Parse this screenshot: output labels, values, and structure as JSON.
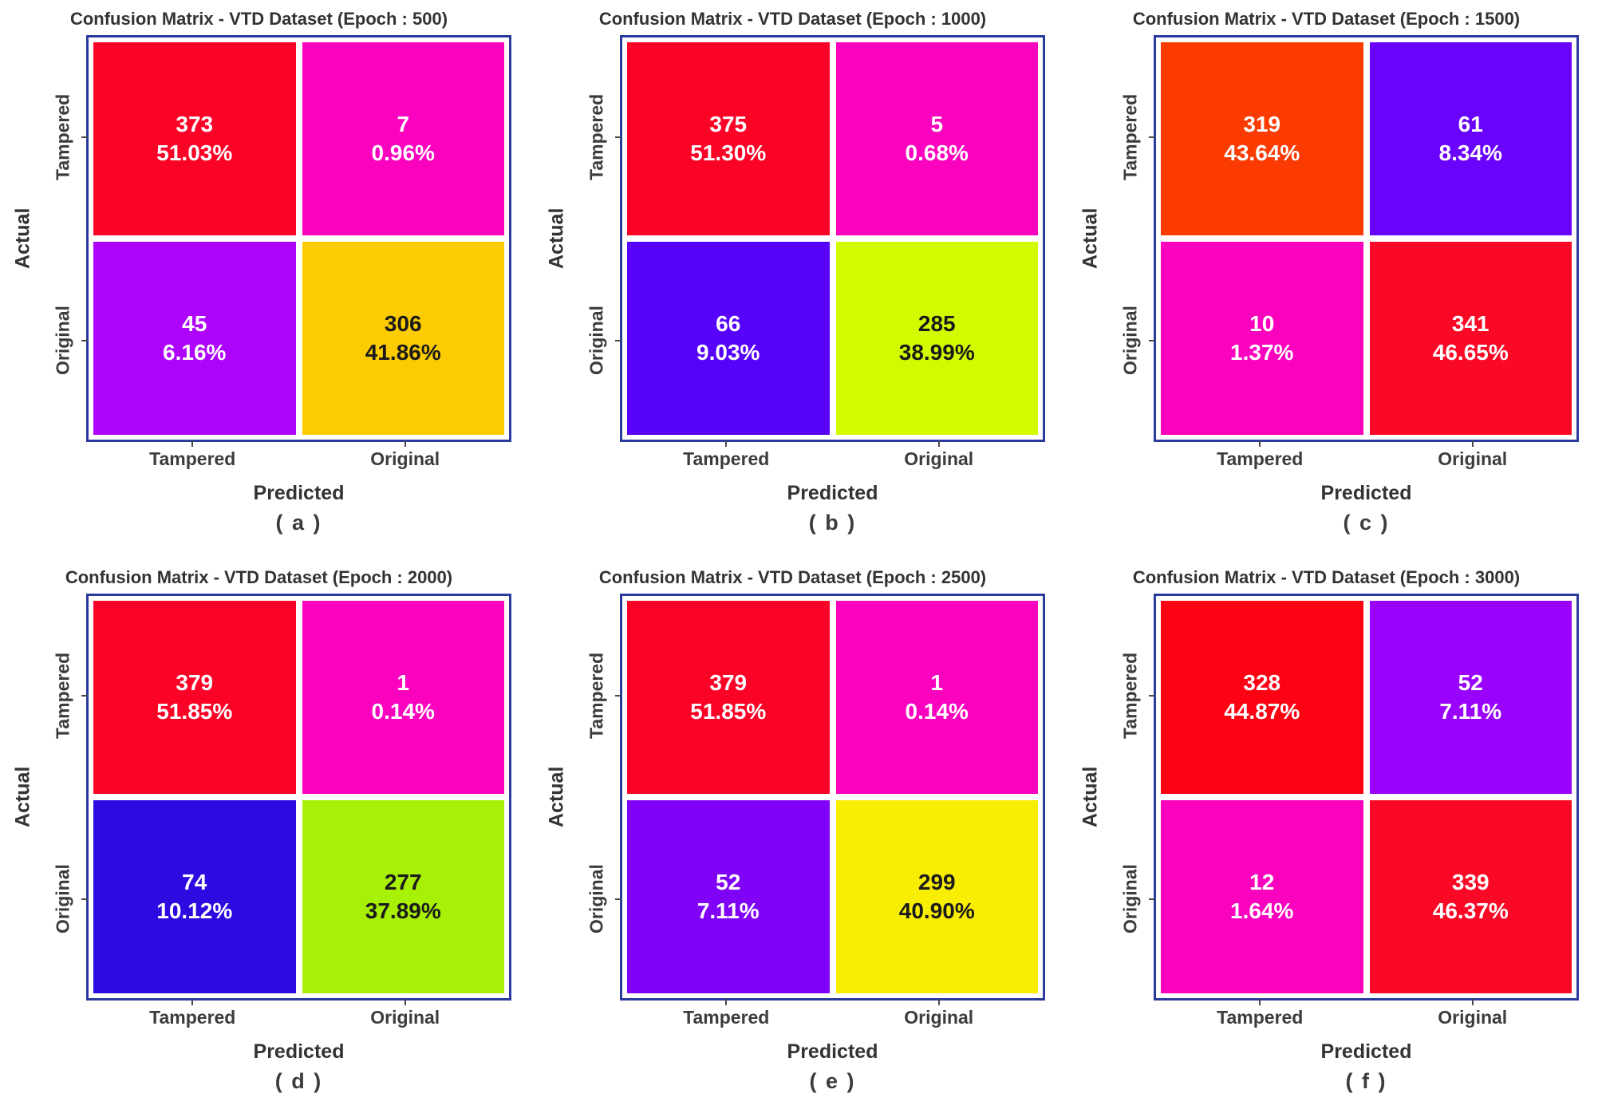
{
  "figure": {
    "ylabel": "Actual",
    "xlabel": "Predicted",
    "row_labels": [
      "Tampered",
      "Original"
    ],
    "col_labels": [
      "Tampered",
      "Original"
    ],
    "frame_color": "#2B3A9E",
    "title_color": "#333333"
  },
  "chart_data": [
    {
      "type": "heatmap",
      "title": "Confusion Matrix - VTD Dataset (Epoch : 500)",
      "epoch": 500,
      "caption": "( a )",
      "rows": [
        "Tampered",
        "Original"
      ],
      "cols": [
        "Tampered",
        "Original"
      ],
      "cells": [
        [
          {
            "count": 373,
            "pct": "51.03%",
            "bg": "#FB0327",
            "fg": "#FFFFFF"
          },
          {
            "count": 7,
            "pct": "0.96%",
            "bg": "#FB02BE",
            "fg": "#FFFFFF"
          }
        ],
        [
          {
            "count": 45,
            "pct": "6.16%",
            "bg": "#AE03FB",
            "fg": "#FFFFFF"
          },
          {
            "count": 306,
            "pct": "41.86%",
            "bg": "#FCCB02",
            "fg": "#1A1A1A"
          }
        ]
      ]
    },
    {
      "type": "heatmap",
      "title": "Confusion Matrix - VTD Dataset (Epoch : 1000)",
      "epoch": 1000,
      "caption": "( b )",
      "rows": [
        "Tampered",
        "Original"
      ],
      "cols": [
        "Tampered",
        "Original"
      ],
      "cells": [
        [
          {
            "count": 375,
            "pct": "51.30%",
            "bg": "#FB0327",
            "fg": "#FFFFFF"
          },
          {
            "count": 5,
            "pct": "0.68%",
            "bg": "#FB02BE",
            "fg": "#FFFFFF"
          }
        ],
        [
          {
            "count": 66,
            "pct": "9.03%",
            "bg": "#5703FB",
            "fg": "#FFFFFF"
          },
          {
            "count": 285,
            "pct": "38.99%",
            "bg": "#D4FA02",
            "fg": "#1A1A1A"
          }
        ]
      ]
    },
    {
      "type": "heatmap",
      "title": "Confusion Matrix - VTD Dataset (Epoch : 1500)",
      "epoch": 1500,
      "caption": "( c )",
      "rows": [
        "Tampered",
        "Original"
      ],
      "cols": [
        "Tampered",
        "Original"
      ],
      "cells": [
        [
          {
            "count": 319,
            "pct": "43.64%",
            "bg": "#FB3B02",
            "fg": "#FFFFFF"
          },
          {
            "count": 61,
            "pct": "8.34%",
            "bg": "#6A03FB",
            "fg": "#FFFFFF"
          }
        ],
        [
          {
            "count": 10,
            "pct": "1.37%",
            "bg": "#FB02BE",
            "fg": "#FFFFFF"
          },
          {
            "count": 341,
            "pct": "46.65%",
            "bg": "#FA0926",
            "fg": "#FFFFFF"
          }
        ]
      ]
    },
    {
      "type": "heatmap",
      "title": "Confusion Matrix - VTD Dataset (Epoch : 2000)",
      "epoch": 2000,
      "caption": "( d )",
      "rows": [
        "Tampered",
        "Original"
      ],
      "cols": [
        "Tampered",
        "Original"
      ],
      "cells": [
        [
          {
            "count": 379,
            "pct": "51.85%",
            "bg": "#FB0327",
            "fg": "#FFFFFF"
          },
          {
            "count": 1,
            "pct": "0.14%",
            "bg": "#FB02BE",
            "fg": "#FFFFFF"
          }
        ],
        [
          {
            "count": 74,
            "pct": "10.12%",
            "bg": "#2B0BE0",
            "fg": "#FFFFFF"
          },
          {
            "count": 277,
            "pct": "37.89%",
            "bg": "#A8F005",
            "fg": "#1A1A1A"
          }
        ]
      ]
    },
    {
      "type": "heatmap",
      "title": "Confusion Matrix - VTD Dataset (Epoch : 2500)",
      "epoch": 2500,
      "caption": "( e )",
      "rows": [
        "Tampered",
        "Original"
      ],
      "cols": [
        "Tampered",
        "Original"
      ],
      "cells": [
        [
          {
            "count": 379,
            "pct": "51.85%",
            "bg": "#FB0327",
            "fg": "#FFFFFF"
          },
          {
            "count": 1,
            "pct": "0.14%",
            "bg": "#FB02BE",
            "fg": "#FFFFFF"
          }
        ],
        [
          {
            "count": 52,
            "pct": "7.11%",
            "bg": "#8003F7",
            "fg": "#FFFFFF"
          },
          {
            "count": 299,
            "pct": "40.90%",
            "bg": "#F8EE03",
            "fg": "#1A1A1A"
          }
        ]
      ]
    },
    {
      "type": "heatmap",
      "title": "Confusion Matrix - VTD Dataset (Epoch : 3000)",
      "epoch": 3000,
      "caption": "( f )",
      "rows": [
        "Tampered",
        "Original"
      ],
      "cols": [
        "Tampered",
        "Original"
      ],
      "cells": [
        [
          {
            "count": 328,
            "pct": "44.87%",
            "bg": "#FC0213",
            "fg": "#FFFFFF"
          },
          {
            "count": 52,
            "pct": "7.11%",
            "bg": "#9903FB",
            "fg": "#FFFFFF"
          }
        ],
        [
          {
            "count": 12,
            "pct": "1.64%",
            "bg": "#FB02BE",
            "fg": "#FFFFFF"
          },
          {
            "count": 339,
            "pct": "46.37%",
            "bg": "#FA0926",
            "fg": "#FFFFFF"
          }
        ]
      ]
    }
  ]
}
